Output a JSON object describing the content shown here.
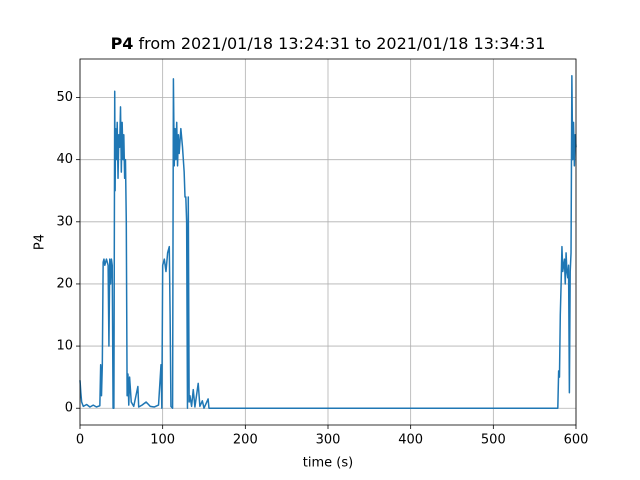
{
  "chart_data": {
    "type": "line",
    "title_bold": "P4",
    "title": "from 2021/01/18 13:24:31 to 2021/01/18 13:34:31",
    "xlabel": "time (s)",
    "ylabel": "P4",
    "color": "#1f77b4",
    "grid": true,
    "xlim": [
      0,
      600
    ],
    "ylim": [
      -2.7,
      56.2
    ],
    "xticks": [
      0,
      100,
      200,
      300,
      400,
      500,
      600
    ],
    "yticks": [
      0,
      10,
      20,
      30,
      40,
      50
    ],
    "x": [
      0,
      1,
      2,
      4,
      8,
      12,
      16,
      20,
      24,
      25,
      26,
      27,
      28,
      29,
      30,
      32,
      34,
      35,
      36,
      37,
      38,
      39,
      40,
      41,
      42,
      42.5,
      43,
      44,
      45,
      46,
      47,
      48,
      49,
      50,
      51,
      52,
      53,
      54,
      55,
      56,
      57,
      58,
      59,
      60,
      62,
      65,
      70,
      71,
      75,
      80,
      85,
      90,
      95,
      98,
      99,
      100,
      102,
      104,
      106,
      108,
      109,
      110,
      112,
      113,
      114,
      115,
      116,
      117,
      118,
      119,
      120,
      122,
      124,
      126,
      127,
      128,
      129,
      130,
      131,
      132,
      133,
      135,
      137,
      139,
      143,
      145,
      148,
      150,
      155,
      156,
      160,
      578,
      579,
      580,
      581,
      582,
      583,
      584,
      586,
      587,
      588,
      589,
      590,
      591,
      592,
      593,
      594,
      595,
      596,
      597,
      598,
      599,
      600
    ],
    "values": [
      4.5,
      2.5,
      1,
      0.3,
      0.6,
      0.2,
      0.5,
      0.2,
      0.4,
      7,
      2,
      7,
      23.5,
      24,
      23,
      24,
      23,
      10,
      24,
      20,
      24,
      23,
      0,
      0,
      51,
      35,
      45,
      40,
      46,
      37,
      44,
      42,
      48.5,
      38,
      46,
      40,
      44,
      37,
      40,
      30,
      2,
      5.5,
      0.5,
      5,
      1,
      0.3,
      3.5,
      0.2,
      0.5,
      1,
      0.3,
      0.2,
      0.5,
      7,
      0,
      23,
      24,
      22,
      25,
      26,
      15,
      0.3,
      0,
      53,
      39,
      45,
      40,
      46,
      39,
      44,
      41,
      45,
      42,
      38,
      34,
      34,
      30,
      0,
      34,
      1,
      2,
      0.3,
      3,
      0.2,
      4,
      0.3,
      1.2,
      0,
      1.5,
      0,
      0,
      0,
      6,
      5,
      15,
      20,
      26,
      22,
      24,
      20,
      25,
      22,
      21,
      23,
      2.5,
      22,
      25,
      53.5,
      40,
      46,
      39,
      44,
      42
    ]
  }
}
